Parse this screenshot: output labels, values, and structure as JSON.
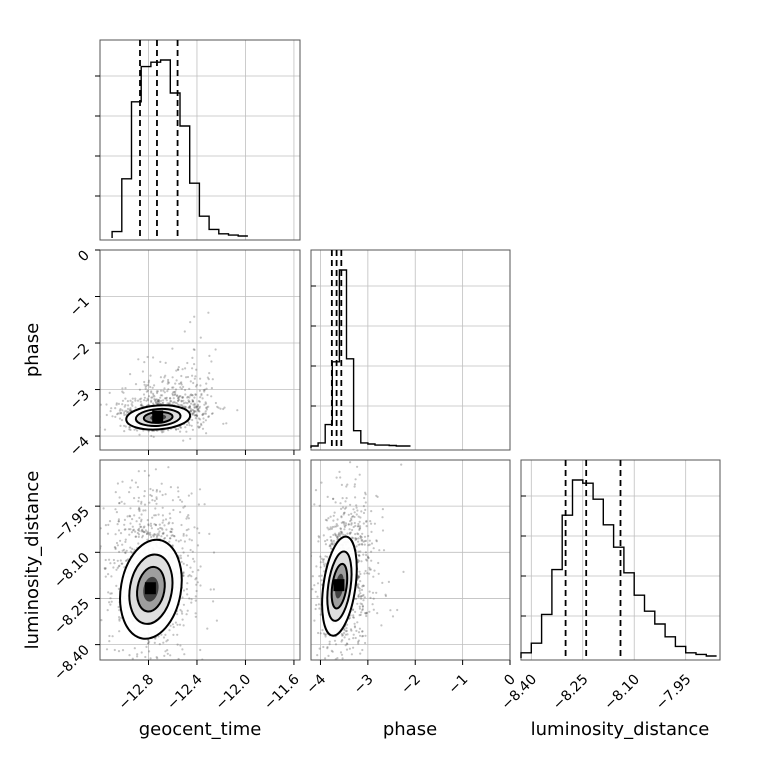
{
  "chart_data": {
    "type": "corner",
    "parameters": [
      "geocent_time",
      "phase",
      "luminosity_distance"
    ],
    "grid": true,
    "panels": [
      {
        "type": "histogram",
        "row": 0,
        "col": 0,
        "xlim": [
          -13.2,
          -11.55
        ],
        "bins": [
          -13.1,
          -13.02,
          -12.94,
          -12.86,
          -12.78,
          -12.7,
          -12.62,
          -12.54,
          -12.46,
          -12.38,
          -12.3,
          -12.22,
          -12.14,
          -12.06
        ],
        "counts": [
          2,
          26,
          61,
          77,
          79,
          80,
          65,
          50,
          24,
          9,
          3,
          1,
          0.4,
          0
        ],
        "quantiles": [
          -12.87,
          -12.73,
          -12.56
        ]
      },
      {
        "type": "scatter-density",
        "row": 1,
        "col": 0,
        "xlim": [
          -13.2,
          -11.55
        ],
        "ylim": [
          -4.3,
          0
        ],
        "center": [
          -12.72,
          -3.6
        ]
      },
      {
        "type": "histogram",
        "row": 1,
        "col": 1,
        "xlim": [
          -4.2,
          0
        ],
        "bins": [
          -4.2,
          -4.05,
          -3.9,
          -3.75,
          -3.6,
          -3.45,
          -3.3,
          -3.15,
          -3.0,
          -2.85,
          -2.7,
          -2.55,
          -2.4,
          -2.25
        ],
        "counts": [
          0,
          2,
          14,
          55,
          115,
          57,
          10,
          2,
          1.3,
          0.6,
          0.6,
          0.3,
          0,
          0
        ],
        "quantiles": [
          -3.76,
          -3.66,
          -3.56
        ]
      },
      {
        "type": "scatter-density",
        "row": 2,
        "col": 0,
        "xlim": [
          -13.2,
          -11.55
        ],
        "ylim": [
          -8.45,
          -7.8
        ],
        "center": [
          -12.78,
          -8.22
        ]
      },
      {
        "type": "scatter-density",
        "row": 2,
        "col": 1,
        "xlim": [
          -4.2,
          0
        ],
        "ylim": [
          -8.45,
          -7.8
        ],
        "center": [
          -3.6,
          -8.21
        ]
      },
      {
        "type": "histogram",
        "row": 2,
        "col": 2,
        "xlim": [
          -8.43,
          -7.85
        ],
        "bins": [
          -8.43,
          -8.4,
          -8.37,
          -8.34,
          -8.31,
          -8.28,
          -8.25,
          -8.22,
          -8.19,
          -8.16,
          -8.13,
          -8.1,
          -8.07,
          -8.04,
          -8.01,
          -7.98,
          -7.95,
          -7.92,
          -7.89
        ],
        "counts": [
          1,
          4,
          13,
          27,
          44,
          55,
          54,
          49,
          41,
          34,
          26,
          19,
          14,
          10,
          6,
          3,
          1,
          0.5,
          0
        ],
        "quantiles": [
          -8.3,
          -8.24,
          -8.14
        ]
      }
    ],
    "ticks": {
      "geocent_time": [
        "−12.8",
        "−12.4",
        "−12.0",
        "−11.6"
      ],
      "geocent_time_values": [
        -12.8,
        -12.4,
        -12.0,
        -11.6
      ],
      "phase_x": [
        "−4",
        "−3",
        "−2",
        "−1",
        "0"
      ],
      "phase_values": [
        -4,
        -3,
        -2,
        -1,
        0
      ],
      "phase_y": [
        "−4",
        "−3",
        "−2",
        "−1",
        "0"
      ],
      "luminosity_distance": [
        "−8.40",
        "−8.25",
        "−8.10",
        "−7.95"
      ],
      "luminosity_distance_values": [
        -8.4,
        -8.25,
        -8.1,
        -7.95
      ]
    },
    "labels": {
      "x": [
        "geocent_time",
        "phase",
        "luminosity_distance"
      ],
      "y": [
        "phase",
        "luminosity_distance"
      ]
    }
  }
}
